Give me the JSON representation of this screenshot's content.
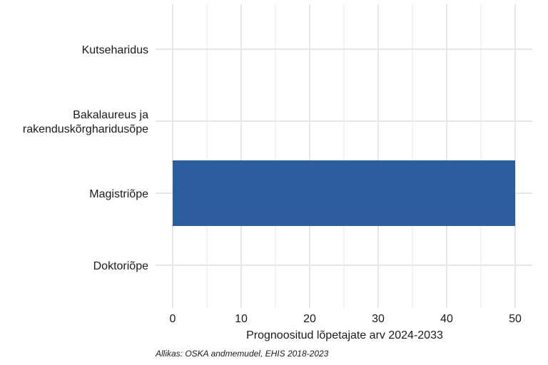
{
  "chart_data": {
    "type": "bar",
    "orientation": "horizontal",
    "categories": [
      "Kutseharidus",
      "Bakalaureus ja rakenduskõrgharidusõpe",
      "Magistriõpe",
      "Doktoriõpe"
    ],
    "category_lines": [
      [
        "Kutseharidus"
      ],
      [
        "Bakalaureus ja",
        "rakenduskõrgharidusõpe"
      ],
      [
        "Magistriõpe"
      ],
      [
        "Doktoriõpe"
      ]
    ],
    "values": [
      0,
      0,
      50,
      0
    ],
    "xlabel": "Prognoositud lõpetajate arv 2024-2033",
    "ylabel": "",
    "xlim": [
      0,
      52.5
    ],
    "xticks": [
      0,
      10,
      20,
      30,
      40,
      50
    ],
    "grid": true,
    "legend": "none",
    "bar_color": "#2c5e9e",
    "caption": "Allikas: OSKA andmemudel, EHIS 2018-2023"
  }
}
